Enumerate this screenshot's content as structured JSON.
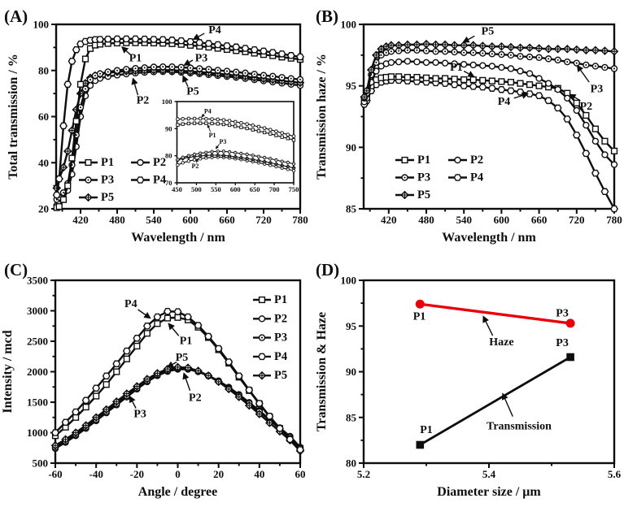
{
  "figure": {
    "background": "#ffffff",
    "ink": "#0d0d0d",
    "accent_red": "#e8000b"
  },
  "markers": {
    "P1": "square",
    "P2": "circle",
    "P3": "circle-dot",
    "P4": "hexagon",
    "P5": "diamond-plus"
  },
  "chart_data": [
    {
      "id": "A",
      "panel_label": "(A)",
      "type": "line",
      "xlabel": "Wavelength / nm",
      "ylabel": "Total transmission / %",
      "xlim": [
        380,
        780
      ],
      "ylim": [
        20,
        100
      ],
      "xticks": [
        420,
        480,
        540,
        600,
        660,
        720,
        780
      ],
      "xminor": [
        390,
        450,
        510,
        570,
        630,
        690,
        750
      ],
      "yticks": [
        20,
        40,
        60,
        80,
        100
      ],
      "yminor": [
        30,
        50,
        70,
        90
      ],
      "x": [
        381,
        385,
        392,
        399,
        406,
        413,
        420,
        428,
        436,
        444,
        452,
        465,
        480,
        495,
        510,
        525,
        540,
        555,
        570,
        585,
        600,
        615,
        630,
        645,
        660,
        675,
        690,
        705,
        720,
        735,
        750,
        765,
        780
      ],
      "series": [
        {
          "name": "P2",
          "marker": "circle",
          "y": [
            21.5,
            22,
            24,
            28,
            35,
            47,
            60,
            69,
            73.5,
            75.6,
            76.6,
            77.4,
            78,
            78.5,
            78.9,
            79.2,
            79.4,
            79.5,
            79.4,
            79.2,
            78.9,
            78.6,
            78.2,
            77.8,
            77.4,
            77,
            76.5,
            76,
            75.5,
            75,
            74.5,
            74,
            73.5
          ]
        },
        {
          "name": "P5",
          "marker": "diamond-plus",
          "y": [
            29,
            33,
            38,
            45,
            54,
            63,
            70,
            74.5,
            76.8,
            77.8,
            78.4,
            79,
            79.4,
            79.7,
            79.9,
            80.1,
            80.2,
            80.2,
            80.1,
            79.9,
            79.6,
            79.3,
            79,
            78.6,
            78.2,
            77.8,
            77.4,
            76.9,
            76.4,
            76,
            75.5,
            75.1,
            74.7
          ]
        },
        {
          "name": "P3",
          "marker": "circle-dot",
          "y": [
            24,
            25,
            27,
            31,
            39,
            52,
            64,
            72,
            76,
            77.8,
            78.6,
            79.4,
            80,
            80.5,
            80.9,
            81.2,
            81.5,
            81.6,
            81.6,
            81.4,
            81.1,
            80.8,
            80.5,
            80.1,
            79.7,
            79.3,
            78.9,
            78.4,
            77.9,
            77.5,
            77,
            76.5,
            76.1
          ]
        },
        {
          "name": "P1",
          "marker": "square",
          "y": [
            20.5,
            21,
            24,
            30,
            42,
            58,
            74,
            85,
            89.5,
            91,
            91.4,
            91.7,
            91.9,
            92,
            92,
            92,
            91.9,
            91.8,
            91.6,
            91.3,
            90.9,
            90.5,
            90.1,
            89.6,
            89.1,
            88.6,
            88.1,
            87.5,
            86.9,
            86.4,
            85.8,
            85.3,
            84.8
          ]
        },
        {
          "name": "P4",
          "marker": "hexagon",
          "y": [
            26,
            33,
            56,
            74,
            84,
            89,
            91.5,
            92.6,
            93.1,
            93.4,
            93.5,
            93.6,
            93.7,
            93.7,
            93.7,
            93.6,
            93.5,
            93.4,
            93.2,
            92.9,
            92.5,
            92.1,
            91.7,
            91.2,
            90.7,
            90.2,
            89.6,
            89,
            88.4,
            87.8,
            87.2,
            86.5,
            85.9
          ]
        }
      ],
      "legend": {
        "order": [
          "P1",
          "P2",
          "P3",
          "P4",
          "P5"
        ],
        "cols": 2
      },
      "annotations": [
        {
          "text": "P4",
          "lx": 640,
          "ly": 97.3,
          "arrow": [
            623,
            96.1,
            605,
            93.5
          ]
        },
        {
          "text": "P1",
          "lx": 510,
          "ly": 85.2,
          "arrow": [
            502,
            86.8,
            488,
            90.2
          ]
        },
        {
          "text": "P3",
          "lx": 618,
          "ly": 85.2,
          "arrow": [
            604,
            84.5,
            590,
            82.3
          ]
        },
        {
          "text": "P2",
          "lx": 522,
          "ly": 66.8,
          "arrow": [
            514,
            69.3,
            506,
            76.5
          ]
        },
        {
          "text": "P5",
          "lx": 604,
          "ly": 70.8,
          "arrow": [
            596,
            73.0,
            588,
            77.6
          ]
        }
      ],
      "inset": {
        "xlim": [
          450,
          750
        ],
        "ylim": [
          70,
          100
        ],
        "xticks": [
          450,
          500,
          550,
          600,
          650,
          700,
          750
        ],
        "xminor": [],
        "yticks": [
          70,
          80,
          90,
          100
        ],
        "yminor": [],
        "annotations": [
          {
            "text": "P4",
            "lx": 529,
            "ly": 96.4,
            "arrow": [
              520,
              95.4,
              514,
              94.3
            ]
          },
          {
            "text": "P1",
            "lx": 541,
            "ly": 87.6,
            "arrow": [
              536,
              88.9,
              529,
              91.4
            ]
          },
          {
            "text": "P3",
            "lx": 568,
            "ly": 85.2,
            "arrow": [
              559,
              84.3,
              550,
              82.6
            ]
          },
          {
            "text": "P2",
            "lx": 497,
            "ly": 76.2,
            "arrow": [
              500,
              77.4,
              503,
              78.9
            ]
          }
        ]
      }
    },
    {
      "id": "B",
      "panel_label": "(B)",
      "type": "line",
      "xlabel": "Wavelength / nm",
      "ylabel": "Transmission haze / %",
      "xlim": [
        380,
        780
      ],
      "ylim": [
        85,
        100
      ],
      "xticks": [
        420,
        480,
        540,
        600,
        660,
        720,
        780
      ],
      "xminor": [
        390,
        450,
        510,
        570,
        630,
        690,
        750
      ],
      "yticks": [
        85,
        90,
        95,
        100
      ],
      "yminor": [
        87.5,
        92.5,
        97.5
      ],
      "x": [
        381,
        385,
        392,
        400,
        408,
        416,
        424,
        436,
        450,
        465,
        480,
        495,
        510,
        525,
        540,
        555,
        570,
        585,
        600,
        615,
        630,
        645,
        660,
        675,
        690,
        705,
        720,
        735,
        750,
        765,
        780
      ],
      "series": [
        {
          "name": "P4",
          "marker": "hexagon",
          "y": [
            93.5,
            93.8,
            94.6,
            95.1,
            95.3,
            95.4,
            95.45,
            95.45,
            95.4,
            95.35,
            95.3,
            95.25,
            95.2,
            95.1,
            95,
            94.95,
            94.9,
            94.8,
            94.7,
            94.6,
            94.5,
            94.35,
            94.2,
            93.8,
            93.2,
            92.3,
            91,
            89.5,
            87.9,
            86.4,
            85
          ]
        },
        {
          "name": "P1",
          "marker": "square",
          "y": [
            93.9,
            94.2,
            95,
            95.5,
            95.65,
            95.7,
            95.75,
            95.75,
            95.7,
            95.7,
            95.65,
            95.6,
            95.6,
            95.55,
            95.5,
            95.5,
            95.45,
            95.4,
            95.35,
            95.3,
            95.2,
            95.1,
            95,
            94.9,
            94.8,
            94.4,
            93.6,
            92.6,
            91.5,
            90.5,
            89.7
          ]
        },
        {
          "name": "P2",
          "marker": "circle",
          "y": [
            93.7,
            94,
            95.3,
            96.2,
            96.6,
            96.8,
            96.9,
            96.95,
            97,
            96.95,
            96.9,
            96.9,
            96.85,
            96.8,
            96.75,
            96.7,
            96.65,
            96.6,
            96.5,
            96.4,
            96.2,
            96,
            95.6,
            95.2,
            94.7,
            94,
            93,
            91.8,
            90.5,
            89.4,
            88.6
          ]
        },
        {
          "name": "P3",
          "marker": "circle-dot",
          "y": [
            94,
            94.4,
            95.9,
            96.9,
            97.5,
            97.7,
            97.8,
            97.85,
            97.9,
            97.9,
            97.85,
            97.8,
            97.8,
            97.75,
            97.7,
            97.7,
            97.65,
            97.6,
            97.55,
            97.5,
            97.4,
            97.35,
            97.3,
            97.2,
            97.1,
            96.95,
            96.85,
            96.7,
            96.6,
            96.5,
            96.4
          ]
        },
        {
          "name": "P5",
          "marker": "diamond-plus",
          "y": [
            94.1,
            94.6,
            96.3,
            97.5,
            98,
            98.2,
            98.3,
            98.3,
            98.35,
            98.35,
            98.4,
            98.35,
            98.35,
            98.3,
            98.3,
            98.3,
            98.25,
            98.2,
            98.2,
            98.15,
            98.1,
            98.1,
            98.05,
            98,
            98,
            98,
            97.95,
            97.9,
            97.9,
            97.85,
            97.8
          ]
        }
      ],
      "legend": {
        "order": [
          "P1",
          "P2",
          "P3",
          "P4",
          "P5"
        ],
        "cols": 2
      },
      "annotations": [
        {
          "text": "P5",
          "lx": 578,
          "ly": 99.4,
          "arrow": [
            557,
            99.05,
            539,
            98.55
          ]
        },
        {
          "text": "P1",
          "lx": 528,
          "ly": 96.45,
          "arrow": [
            540,
            96.2,
            556,
            95.75
          ]
        },
        {
          "text": "P3",
          "lx": 752,
          "ly": 94.7,
          "arrow": [
            740,
            95.3,
            721,
            96.65
          ]
        },
        {
          "text": "P2",
          "lx": 735,
          "ly": 93.3,
          "arrow": [
            726,
            93.8,
            709,
            94.3
          ]
        },
        {
          "text": "P4",
          "lx": 604,
          "ly": 93.7,
          "arrow": [
            620,
            94.0,
            642,
            94.35
          ]
        }
      ]
    },
    {
      "id": "C",
      "panel_label": "(C)",
      "type": "line",
      "xlabel": "Angle / degree",
      "ylabel": "Intensity / mcd",
      "xlim": [
        -60,
        60
      ],
      "ylim": [
        500,
        3500
      ],
      "xticks": [
        -60,
        -40,
        -20,
        0,
        20,
        40,
        60
      ],
      "xminor": [
        -50,
        -30,
        -10,
        10,
        30,
        50
      ],
      "yticks": [
        500,
        1000,
        1500,
        2000,
        2500,
        3000,
        3500
      ],
      "yminor": [
        750,
        1250,
        1750,
        2250,
        2750,
        3250
      ],
      "x": [
        -60,
        -55,
        -50,
        -45,
        -40,
        -35,
        -30,
        -25,
        -20,
        -15,
        -10,
        -5,
        0,
        5,
        10,
        15,
        20,
        25,
        30,
        35,
        40,
        45,
        50,
        55,
        60
      ],
      "series": [
        {
          "name": "P2",
          "marker": "circle",
          "y": [
            740,
            840,
            950,
            1070,
            1195,
            1325,
            1455,
            1585,
            1715,
            1835,
            1935,
            2005,
            2040,
            2040,
            2000,
            1935,
            1850,
            1745,
            1625,
            1495,
            1360,
            1220,
            1080,
            940,
            760
          ]
        },
        {
          "name": "P3",
          "marker": "circle-dot",
          "y": [
            760,
            860,
            970,
            1090,
            1215,
            1345,
            1475,
            1605,
            1730,
            1850,
            1950,
            2020,
            2055,
            2050,
            2005,
            1930,
            1840,
            1730,
            1610,
            1480,
            1345,
            1205,
            1065,
            925,
            745
          ]
        },
        {
          "name": "P5",
          "marker": "diamond-plus",
          "y": [
            790,
            890,
            1000,
            1120,
            1250,
            1380,
            1510,
            1640,
            1760,
            1880,
            1975,
            2045,
            2075,
            2065,
            2015,
            1935,
            1835,
            1715,
            1585,
            1445,
            1305,
            1160,
            1020,
            875,
            700
          ]
        },
        {
          "name": "P1",
          "marker": "square",
          "y": [
            950,
            1090,
            1250,
            1420,
            1600,
            1790,
            2000,
            2210,
            2420,
            2630,
            2790,
            2880,
            2890,
            2850,
            2730,
            2560,
            2360,
            2140,
            1910,
            1690,
            1470,
            1260,
            1070,
            900,
            740
          ]
        },
        {
          "name": "P4",
          "marker": "hexagon",
          "y": [
            1000,
            1170,
            1340,
            1530,
            1730,
            1930,
            2130,
            2340,
            2550,
            2750,
            2900,
            2990,
            2985,
            2900,
            2760,
            2580,
            2380,
            2160,
            1930,
            1700,
            1480,
            1270,
            1070,
            890,
            720
          ]
        }
      ],
      "legend": {
        "order": [
          "P1",
          "P2",
          "P3",
          "P4",
          "P5"
        ],
        "cols": 1
      },
      "annotations": [
        {
          "text": "P4",
          "lx": -23,
          "ly": 3110,
          "arrow": [
            -19.5,
            3020,
            -13.5,
            2880
          ]
        },
        {
          "text": "P1",
          "lx": 4,
          "ly": 2500,
          "arrow": [
            0.5,
            2590,
            -4.5,
            2790
          ]
        },
        {
          "text": "P5",
          "lx": 2,
          "ly": 2230,
          "arrow": [
            -0.5,
            2160,
            -5,
            2075
          ]
        },
        {
          "text": "P2",
          "lx": 8.5,
          "ly": 1570,
          "arrow": [
            6,
            1690,
            3,
            1975
          ]
        },
        {
          "text": "P3",
          "lx": -18.5,
          "ly": 1300,
          "arrow": [
            -20.5,
            1400,
            -23.5,
            1595
          ]
        }
      ]
    },
    {
      "id": "D",
      "panel_label": "(D)",
      "type": "line",
      "xlabel": "Diameter size / μm",
      "ylabel": "Transmission & Haze",
      "xlim": [
        5.2,
        5.6
      ],
      "ylim": [
        80,
        100
      ],
      "xticks": [
        5.2,
        5.4,
        5.6
      ],
      "xminor": [
        5.3,
        5.5
      ],
      "yticks": [
        80,
        85,
        90,
        95,
        100
      ],
      "yminor": [
        82.5,
        87.5,
        92.5,
        97.5
      ],
      "series": [
        {
          "name": "Transmission",
          "marker": "filled-square",
          "color": "#0d0d0d",
          "lw": 2.8,
          "x": [
            5.29,
            5.53
          ],
          "y": [
            82,
            91.6
          ]
        },
        {
          "name": "Haze",
          "marker": "filled-circle",
          "color": "#e8000b",
          "lw": 3.4,
          "x": [
            5.29,
            5.53
          ],
          "y": [
            97.4,
            95.3
          ]
        }
      ],
      "annotations": [
        {
          "text": "Haze",
          "lx": 5.42,
          "ly": 93.2,
          "arrow": [
            5.406,
            93.95,
            5.391,
            96.05
          ]
        },
        {
          "text": "Transmission",
          "lx": 5.448,
          "ly": 84.0,
          "arrow": [
            5.438,
            85.1,
            5.422,
            87.6
          ]
        }
      ],
      "point_labels": [
        {
          "text": "P1",
          "x": 5.289,
          "y": 96.0
        },
        {
          "text": "P3",
          "x": 5.517,
          "y": 96.35
        },
        {
          "text": "P1",
          "x": 5.3,
          "y": 83.6
        },
        {
          "text": "P3",
          "x": 5.517,
          "y": 93.1
        }
      ]
    }
  ]
}
